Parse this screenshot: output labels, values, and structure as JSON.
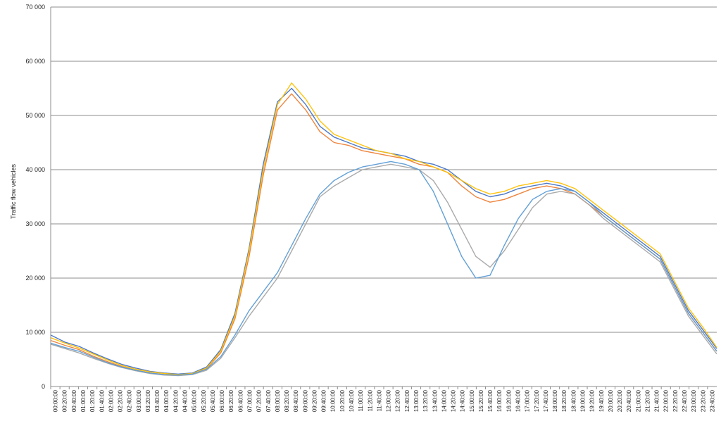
{
  "chart_data": {
    "type": "line",
    "title": "",
    "xlabel": "",
    "ylabel": "Traffic flow  vehicles",
    "ylim": [
      0,
      70000
    ],
    "y_ticks": [
      {
        "value": 0,
        "label": "0"
      },
      {
        "value": 10000,
        "label": "10 000"
      },
      {
        "value": 20000,
        "label": "20 000"
      },
      {
        "value": 30000,
        "label": "30 000"
      },
      {
        "value": 40000,
        "label": "40 000"
      },
      {
        "value": 50000,
        "label": "50 000"
      },
      {
        "value": 60000,
        "label": "60 000"
      },
      {
        "value": 70000,
        "label": "70 000"
      }
    ],
    "x_tick_labels": [
      "00:00:00",
      "00:20:00",
      "00:40:00",
      "01:00:00",
      "01:20:00",
      "01:40:00",
      "02:00:00",
      "02:20:00",
      "02:40:00",
      "03:00:00",
      "03:20:00",
      "03:40:00",
      "04:00:00",
      "04:20:00",
      "04:40:00",
      "05:00:00",
      "05:20:00",
      "05:40:00",
      "06:00:00",
      "06:20:00",
      "06:40:00",
      "07:00:00",
      "07:20:00",
      "07:40:00",
      "08:00:00",
      "08:20:00",
      "08:40:00",
      "09:00:00",
      "09:20:00",
      "09:40:00",
      "10:00:00",
      "10:20:00",
      "10:40:00",
      "11:00:00",
      "11:20:00",
      "11:40:00",
      "12:00:00",
      "12:20:00",
      "12:40:00",
      "13:00:00",
      "13:20:00",
      "13:40:00",
      "14:00:00",
      "14:20:00",
      "14:40:00",
      "15:00:00",
      "15:20:00",
      "15:40:00",
      "16:00:00",
      "16:20:00",
      "16:40:00",
      "17:00:00",
      "17:20:00",
      "17:40:00",
      "18:00:00",
      "18:20:00",
      "18:40:00",
      "19:00:00",
      "19:20:00",
      "19:40:00",
      "20:00:00",
      "20:20:00",
      "20:40:00",
      "21:00:00",
      "21:20:00",
      "21:40:00",
      "22:00:00",
      "22:20:00",
      "22:40:00",
      "23:00:00",
      "23:20:00",
      "23:40:00"
    ],
    "grid": true,
    "legend": "none",
    "series_colors": [
      "#4472C4",
      "#ED7D31",
      "#A5A5A5",
      "#FFC000",
      "#5B9BD5",
      "#70AD47",
      "#264478",
      "#9E480E",
      "#636363",
      "#997300",
      "#255E91",
      "#43682B",
      "#698ED0",
      "#F1975A",
      "#B7B7B7",
      "#FFCD33",
      "#7CAFDD",
      "#8CC168",
      "#335AA1",
      "#C65911",
      "#8FAADC",
      "#F4B183",
      "#A9D18E",
      "#FFD966",
      "#9DC3E6",
      "#C9C9C9"
    ],
    "series": [
      {
        "values": [
          9500,
          8200,
          7400,
          6200,
          5100,
          4100,
          3400,
          2800,
          2500,
          2300,
          2500,
          3600,
          6800,
          13500,
          25500,
          41000,
          52500,
          55000,
          52000,
          48000,
          46000,
          45000,
          44000,
          43500,
          43000,
          42500,
          41500,
          41000,
          40000,
          38000,
          36000,
          35000,
          35500,
          36500,
          37000,
          37500,
          37000,
          36000,
          34000,
          32000,
          30000,
          28000,
          26000,
          24000,
          19000,
          14000,
          10500,
          7000
        ]
      },
      {
        "values": [
          8500,
          7600,
          6800,
          5600,
          4600,
          3700,
          3000,
          2500,
          2200,
          2100,
          2300,
          3300,
          6200,
          12500,
          24000,
          39000,
          51000,
          54000,
          51000,
          47000,
          45000,
          44500,
          43500,
          43000,
          42500,
          42000,
          41000,
          40500,
          39500,
          37000,
          35000,
          34000,
          34500,
          35500,
          36500,
          37000,
          36500,
          35500,
          33500,
          31500,
          29500,
          27500,
          25500,
          23500,
          18500,
          13500,
          10000,
          6500
        ]
      },
      {
        "values": [
          7800,
          7000,
          6200,
          5200,
          4300,
          3500,
          2900,
          2400,
          2100,
          2000,
          2200,
          3000,
          5200,
          9000,
          13000,
          16500,
          20000,
          25000,
          30000,
          35000,
          37000,
          38500,
          40000,
          40500,
          41000,
          40500,
          40000,
          38000,
          34000,
          29000,
          24000,
          22000,
          25000,
          29000,
          33000,
          35500,
          36000,
          35500,
          33500,
          31000,
          29000,
          27000,
          25000,
          23000,
          18000,
          13000,
          9500,
          6000
        ]
      },
      {
        "values": [
          9000,
          8000,
          7100,
          6000,
          4900,
          3900,
          3200,
          2700,
          2400,
          2200,
          2400,
          3400,
          6500,
          13000,
          25000,
          40000,
          52000,
          56000,
          53000,
          49000,
          46500,
          45500,
          44500,
          43500,
          43000,
          42000,
          41500,
          40500,
          39500,
          38000,
          36500,
          35500,
          36000,
          37000,
          37500,
          38000,
          37500,
          36500,
          34500,
          32500,
          30500,
          28500,
          26500,
          24500,
          19500,
          14500,
          11000,
          7200
        ]
      },
      {
        "values": [
          8000,
          7200,
          6500,
          5400,
          4400,
          3600,
          3000,
          2500,
          2200,
          2100,
          2300,
          3200,
          5500,
          9500,
          14000,
          17500,
          21000,
          26000,
          31000,
          35500,
          38000,
          39500,
          40500,
          41000,
          41500,
          41000,
          40000,
          36000,
          30000,
          24000,
          20000,
          20500,
          26000,
          31000,
          34500,
          36000,
          36500,
          36000,
          34000,
          31500,
          29500,
          27500,
          25500,
          23500,
          18500,
          13500,
          10000,
          6500
        ]
      }
    ]
  }
}
